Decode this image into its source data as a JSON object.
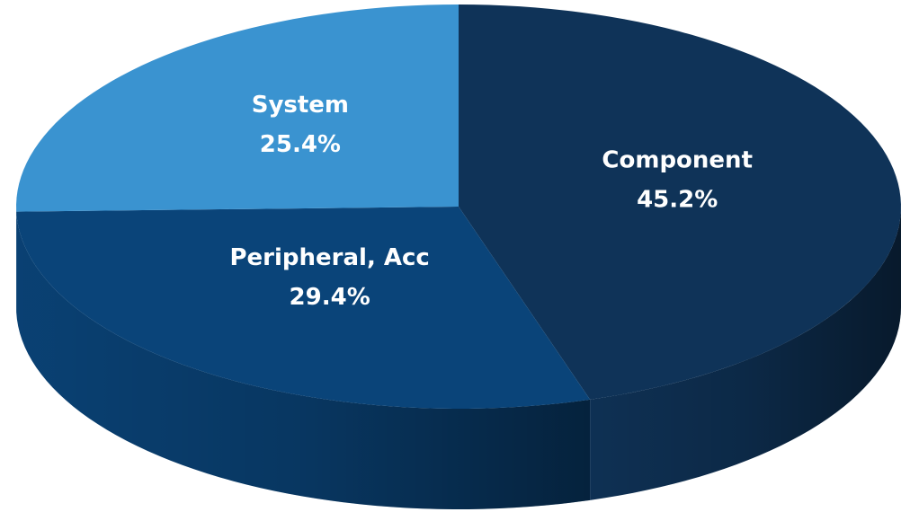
{
  "chart_data": {
    "type": "pie",
    "categories": [
      "Component",
      "Peripheral, Acc",
      "System"
    ],
    "values": [
      45.2,
      29.4,
      25.4
    ],
    "value_labels": [
      "45.2%",
      "29.4%",
      "25.4%"
    ],
    "colors": [
      "#0f3358",
      "#0a4479",
      "#3a93d0"
    ]
  }
}
